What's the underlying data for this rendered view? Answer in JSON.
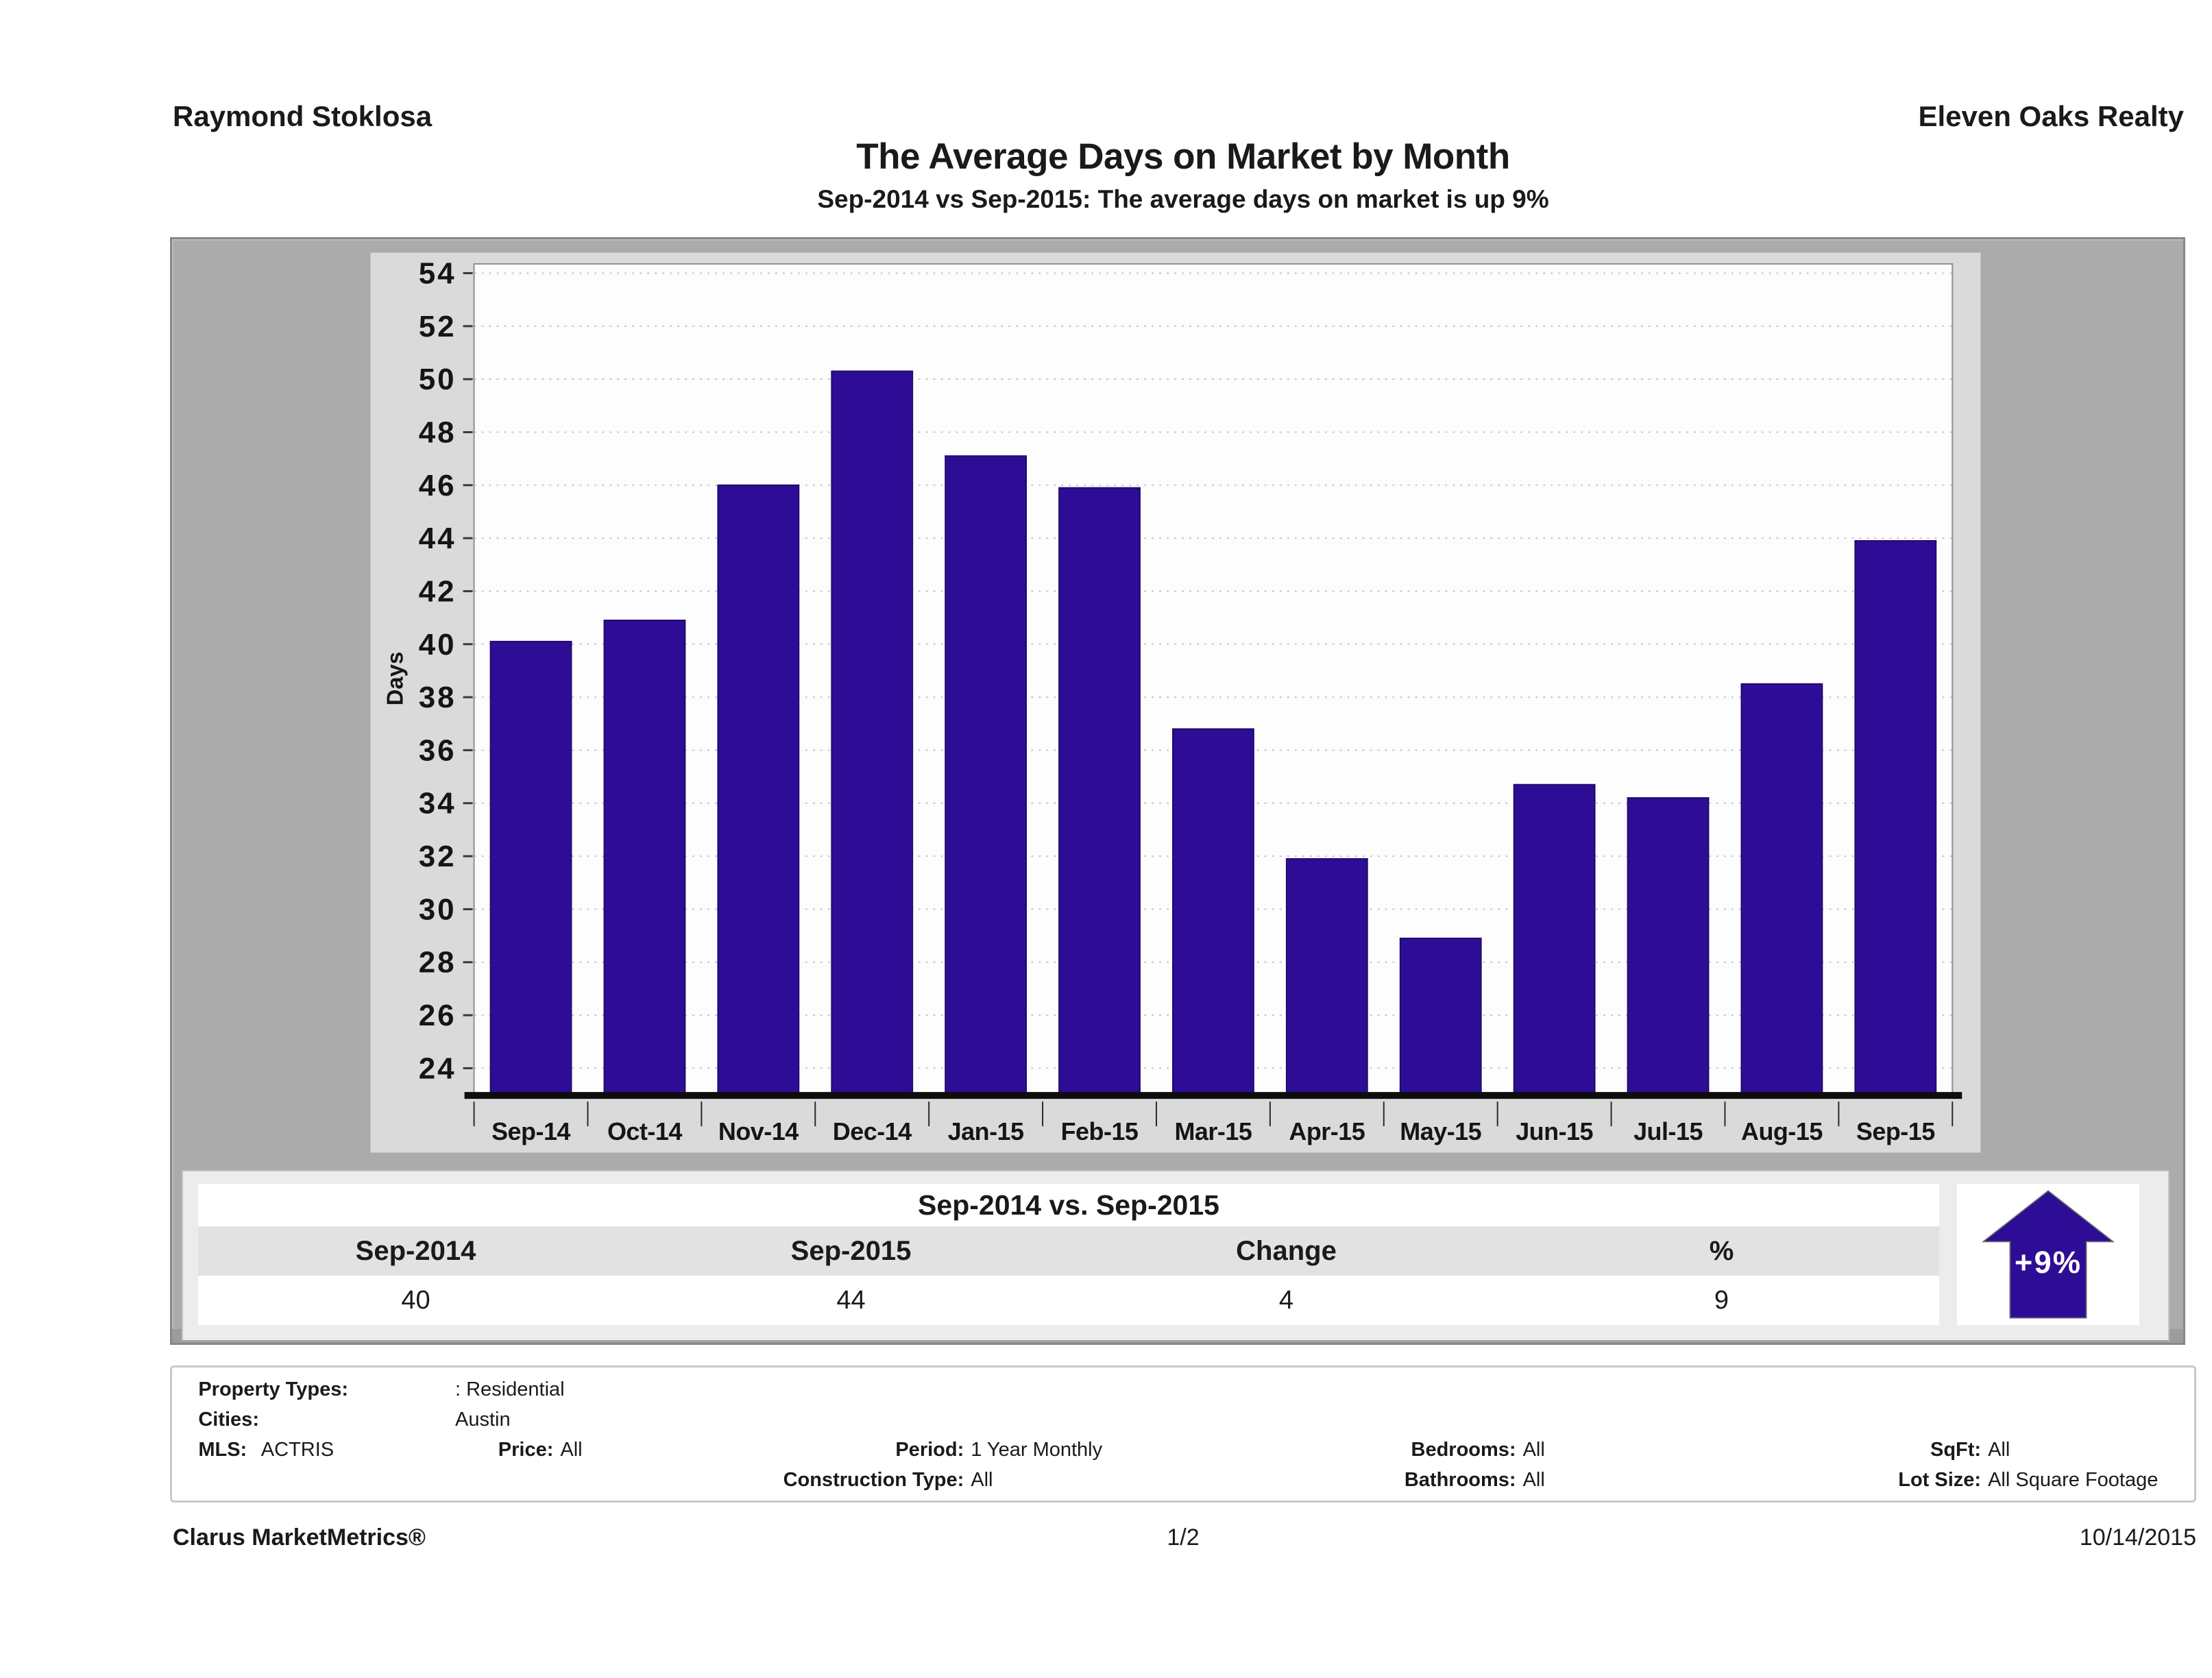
{
  "header": {
    "agent_name": "Raymond Stoklosa",
    "company_name": "Eleven Oaks Realty",
    "title": "The Average Days on Market by Month",
    "subtitle": "Sep-2014 vs Sep-2015: The average days on market is up 9%"
  },
  "chart_data": {
    "type": "bar",
    "title": "The Average Days on Market by Month",
    "xlabel": "",
    "ylabel": "Days",
    "categories": [
      "Sep-14",
      "Oct-14",
      "Nov-14",
      "Dec-14",
      "Jan-15",
      "Feb-15",
      "Mar-15",
      "Apr-15",
      "May-15",
      "Jun-15",
      "Jul-15",
      "Aug-15",
      "Sep-15"
    ],
    "values": [
      40.1,
      40.9,
      46.0,
      50.3,
      47.1,
      45.9,
      36.8,
      31.9,
      28.9,
      34.7,
      34.2,
      38.5,
      43.9
    ],
    "ylim": [
      23.05,
      54.35
    ],
    "yticks": {
      "min": 24,
      "max": 54,
      "step": 2
    },
    "grid": "dotted-horizontal",
    "legend": "none",
    "bar_color": "#2e0d96",
    "bar_edge_color": "#200a6e",
    "plot_bg": "#fdfdfd",
    "grid_color": "#c6c6c6"
  },
  "comparison": {
    "title": "Sep-2014 vs. Sep-2015",
    "columns": [
      "Sep-2014",
      "Sep-2015",
      "Change",
      "%"
    ],
    "values": [
      "40",
      "44",
      "4",
      "9"
    ],
    "badge": {
      "label": "+9%",
      "direction": "up",
      "color": "#2e0d96"
    }
  },
  "filters": {
    "property_types_label": "Property Types:",
    "property_types_value": ": Residential",
    "cities_label": "Cities:",
    "cities_value": "Austin",
    "mls_label": "MLS:",
    "mls_value": "ACTRIS",
    "price_label": "Price:",
    "price_value": "All",
    "period_label": "Period:",
    "period_value": "1 Year Monthly",
    "construction_label": "Construction Type:",
    "construction_value": "All",
    "bedrooms_label": "Bedrooms:",
    "bedrooms_value": "All",
    "bathrooms_label": "Bathrooms:",
    "bathrooms_value": "All",
    "sqft_label": "SqFt:",
    "sqft_value": "All",
    "lotsize_label": "Lot Size:",
    "lotsize_value": "All Square Footage"
  },
  "footer": {
    "brand": "Clarus MarketMetrics®",
    "page": "1/2",
    "date": "10/14/2015"
  }
}
